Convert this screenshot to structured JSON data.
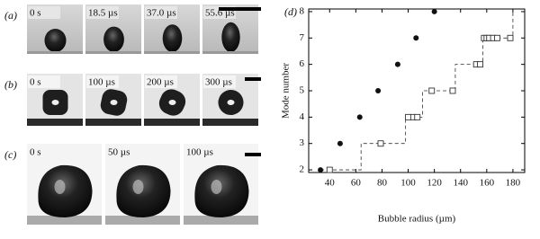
{
  "panels": [
    {
      "label": "(a)",
      "times": [
        "0 s",
        "18.5 µs",
        "37.0 µs",
        "55.6 µs"
      ]
    },
    {
      "label": "(b)",
      "times": [
        "0 s",
        "100 µs",
        "200 µs",
        "300 µs"
      ]
    },
    {
      "label": "(c)",
      "times": [
        "0 s",
        "50 µs",
        "100 µs"
      ]
    }
  ],
  "chart_data": {
    "type": "scatter",
    "label": "(d)",
    "x_label": "Bubble radius (µm)",
    "y_label": "Mode number",
    "xlim": [
      24,
      189
    ],
    "ylim": [
      1.9,
      8.1
    ],
    "xticks": [
      40,
      60,
      80,
      100,
      120,
      140,
      160,
      180
    ],
    "yticks": [
      2,
      3,
      4,
      5,
      6,
      7,
      8
    ],
    "series": [
      {
        "marker": "circle",
        "color": "#111111",
        "x": [
          33,
          48,
          63,
          77,
          92,
          106,
          120
        ],
        "values": [
          2,
          3,
          4,
          5,
          6,
          7,
          8
        ]
      },
      {
        "marker": "square-open",
        "color": "#333333",
        "x": [
          40,
          79,
          100,
          104,
          107,
          118,
          134,
          152,
          155,
          158,
          160,
          162,
          165,
          168,
          178
        ],
        "values": [
          2,
          3,
          4,
          4,
          4,
          5,
          5,
          6,
          6,
          7,
          7,
          7,
          7,
          7,
          7
        ]
      },
      {
        "line": "dashed",
        "color": "#333333",
        "x": [
          33,
          64,
          64,
          98,
          98,
          111,
          111,
          136,
          136,
          157,
          157,
          180,
          180
        ],
        "values": [
          2,
          2,
          3,
          3,
          4,
          4,
          5,
          5,
          6,
          6,
          7,
          7,
          8
        ]
      }
    ]
  }
}
